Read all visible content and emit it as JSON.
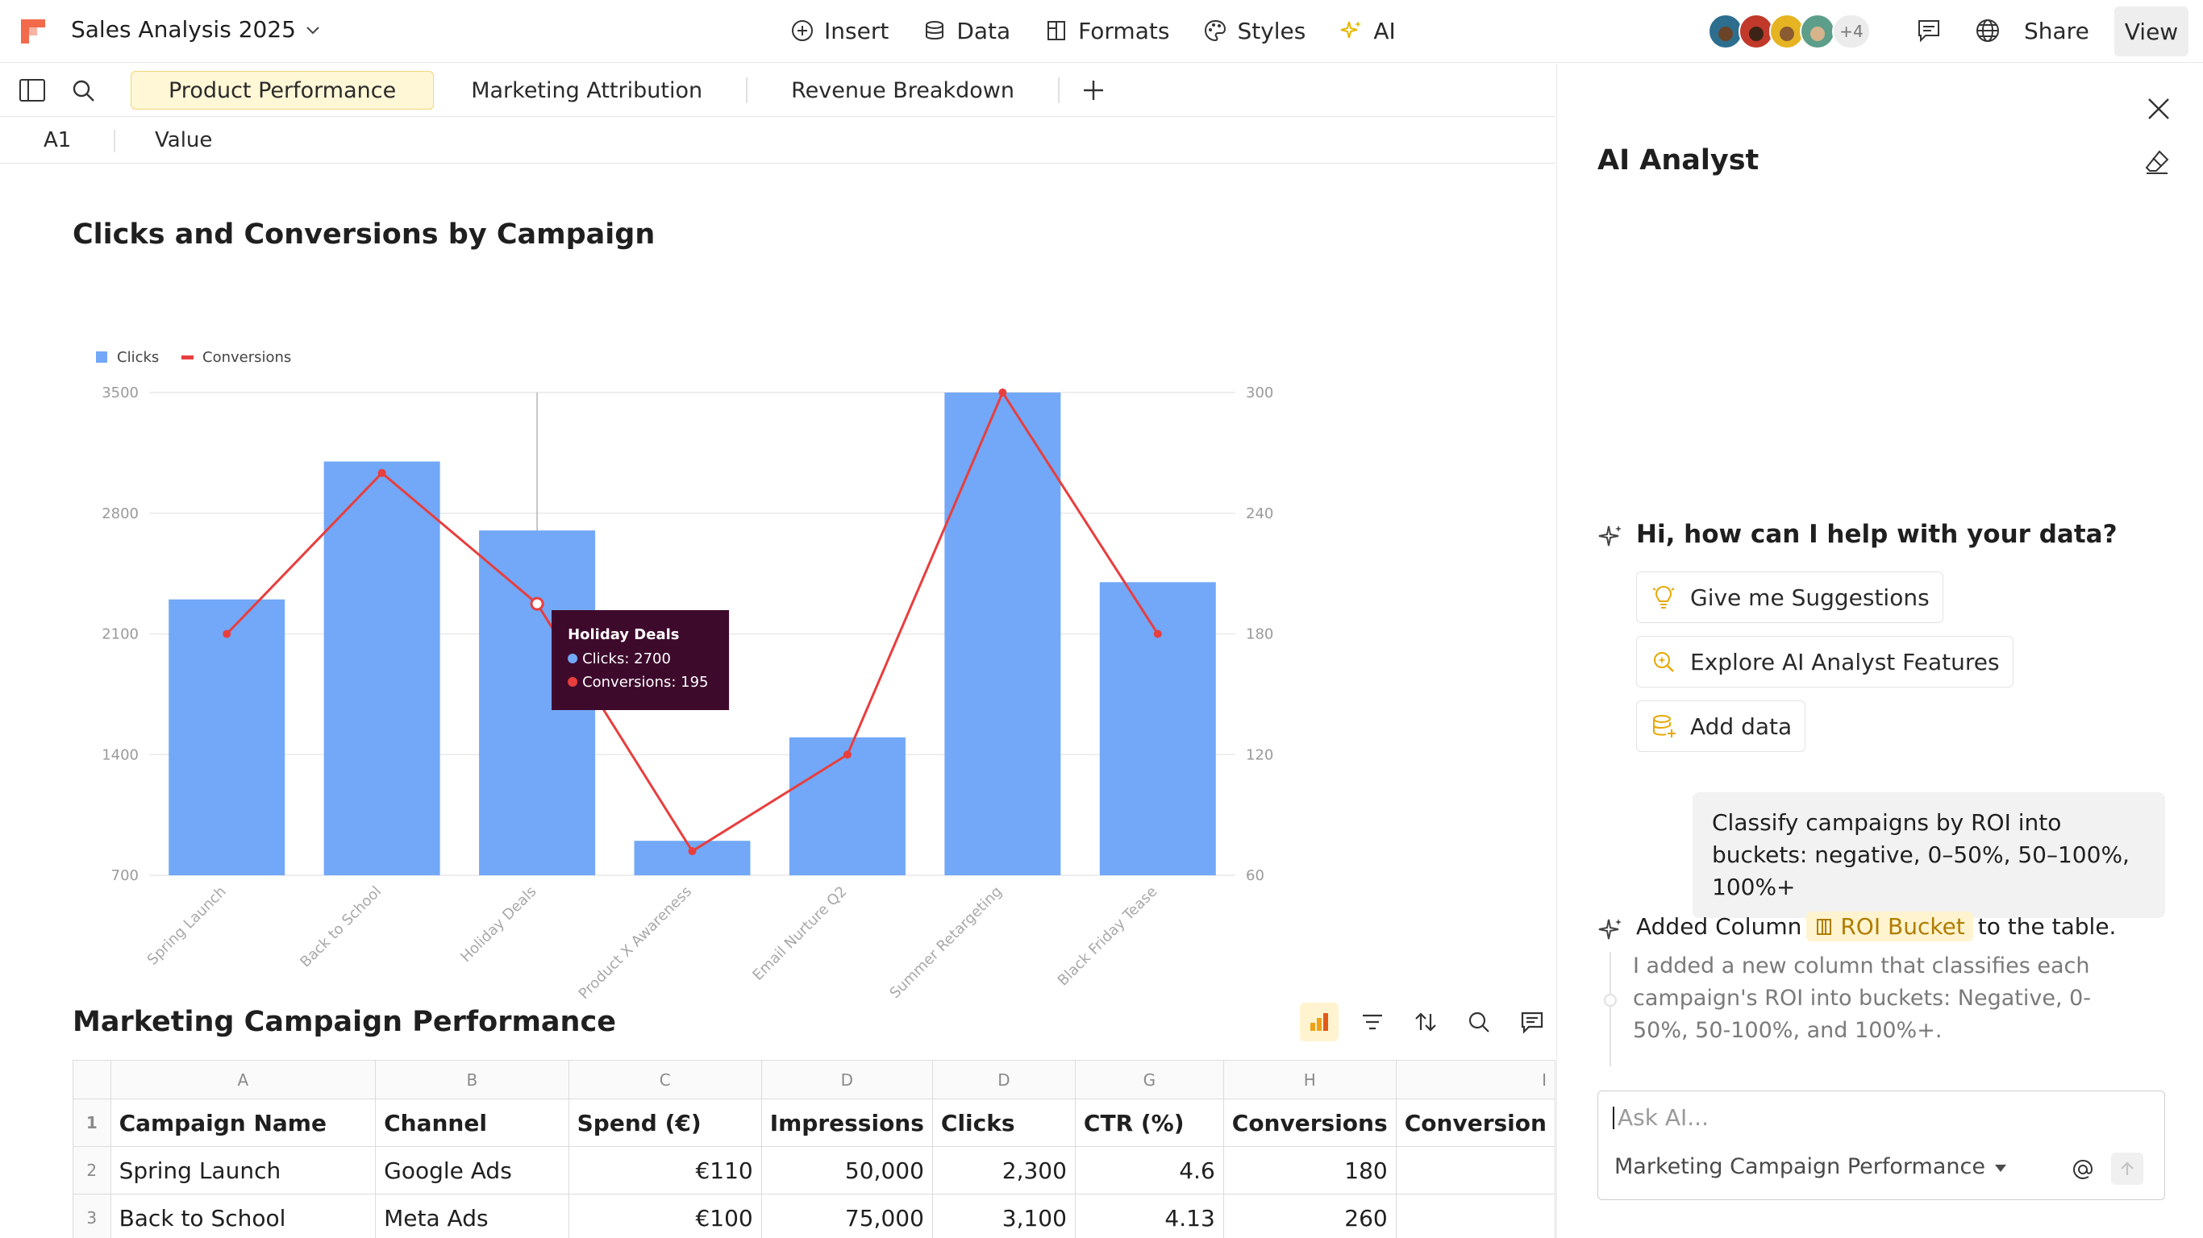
{
  "app": {
    "doc_title": "Sales Analysis 2025",
    "menu": [
      {
        "label": "Insert",
        "icon": "plus-circle-icon"
      },
      {
        "label": "Data",
        "icon": "database-icon"
      },
      {
        "label": "Formats",
        "icon": "formats-icon"
      },
      {
        "label": "Styles",
        "icon": "palette-icon"
      },
      {
        "label": "AI",
        "icon": "sparkle-icon"
      }
    ],
    "collaborators_more": "+4",
    "share_label": "Share",
    "view_label": "View"
  },
  "tabs": [
    {
      "label": "Product Performance",
      "active": true
    },
    {
      "label": "Marketing Attribution",
      "active": false
    },
    {
      "label": "Revenue Breakdown",
      "active": false
    }
  ],
  "formula_bar": {
    "cell_ref": "A1",
    "value": "Value"
  },
  "chart": {
    "title": "Clicks and Conversions by Campaign"
  },
  "chart_data": {
    "type": "bar",
    "title": "Clicks and Conversions by Campaign",
    "categories": [
      "Spring Launch",
      "Back to School",
      "Holiday Deals",
      "Product X Awareness",
      "Email Nurture Q2",
      "Summer Retargeting",
      "Black Friday Tease"
    ],
    "series": [
      {
        "name": "Clicks",
        "type": "bar",
        "axis": "left",
        "color": "#72a8f7",
        "values": [
          2300,
          3100,
          2700,
          900,
          1500,
          3500,
          2400
        ]
      },
      {
        "name": "Conversions",
        "type": "line",
        "axis": "right",
        "color": "#e83e3e",
        "values": [
          180,
          260,
          195,
          72,
          120,
          300,
          180
        ]
      }
    ],
    "y_left": {
      "min": 700,
      "max": 3500,
      "ticks": [
        700,
        1400,
        2100,
        2800,
        3500
      ]
    },
    "y_right": {
      "min": 60,
      "max": 300,
      "ticks": [
        60,
        120,
        180,
        240,
        300
      ]
    },
    "legend_position": "top-left",
    "grid": true,
    "tooltip": {
      "title": "Holiday Deals",
      "lines": [
        "Clicks: 2700",
        "Conversions: 195"
      ],
      "category_index": 2
    }
  },
  "table": {
    "title": "Marketing Campaign Performance",
    "column_letters": [
      "A",
      "B",
      "C",
      "D",
      "D",
      "G",
      "H",
      "I"
    ],
    "headers": [
      "Campaign Name",
      "Channel",
      "Spend (€)",
      "Impressions",
      "Clicks",
      "CTR (%)",
      "Conversions",
      "Conversion"
    ],
    "rows": [
      {
        "num": "1"
      },
      {
        "num": "2",
        "cells": [
          "Spring Launch",
          "Google Ads",
          "€110",
          "50,000",
          "2,300",
          "4.6",
          "180",
          ""
        ]
      },
      {
        "num": "3",
        "cells": [
          "Back to School",
          "Meta Ads",
          "€100",
          "75,000",
          "3,100",
          "4.13",
          "260",
          ""
        ]
      }
    ]
  },
  "ai_panel": {
    "title": "AI Analyst",
    "greeting": "Hi, how can I help with your data?",
    "suggestions": [
      "Give me Suggestions",
      "Explore AI Analyst Features",
      "Add data"
    ],
    "user_message": "Classify campaigns by ROI into buckets: negative, 0–50%, 50–100%, 100%+",
    "reply_prefix": "Added Column",
    "reply_chip": "ROI Bucket",
    "reply_suffix": "to the table.",
    "reply_detail": "I added a new column that classifies each campaign's ROI into buckets: Negative, 0-50%, 50-100%, and 100%+.",
    "input_placeholder": "Ask AI...",
    "context_label": "Marketing Campaign Performance"
  }
}
